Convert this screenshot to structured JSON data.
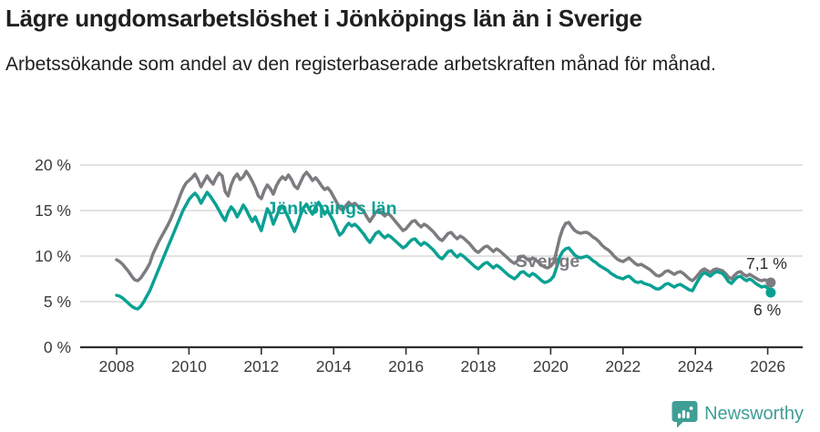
{
  "header": {
    "title": "Lägre ungdomsarbetslöshet i Jönköpings län än i Sverige",
    "subtitle": "Arbetssökande som andel av den registerbaserade arbetskraften månad för månad."
  },
  "chart_data": {
    "type": "line",
    "title": "Lägre ungdomsarbetslöshet i Jönköpings län än i Sverige",
    "subtitle": "Arbetssökande som andel av den registerbaserade arbetskraften månad för månad.",
    "grid": true,
    "legend": "inline-labels-on-lines",
    "unit": "%",
    "sampling": {
      "start": "2008-01",
      "interval": "monthly",
      "end": "2026-02"
    },
    "x_axis": {
      "label": "",
      "tick_labels": [
        "2008",
        "2010",
        "2012",
        "2014",
        "2016",
        "2018",
        "2020",
        "2022",
        "2024",
        "2026"
      ],
      "tick_values": [
        2008,
        2010,
        2012,
        2014,
        2016,
        2018,
        2020,
        2022,
        2024,
        2026
      ],
      "range": [
        2007.0,
        2027.0
      ]
    },
    "y_axis": {
      "label": "",
      "tick_labels": [
        "0 %",
        "5 %",
        "10 %",
        "15 %",
        "20 %"
      ],
      "tick_values": [
        0,
        5,
        10,
        15,
        20
      ],
      "range": [
        0,
        21
      ]
    },
    "series": [
      {
        "name": "Sverige",
        "color": "#7c7c80",
        "end_label": "7,1 %",
        "last_value": 7.1,
        "values": [
          9.6,
          9.4,
          9.1,
          8.7,
          8.3,
          7.8,
          7.4,
          7.3,
          7.6,
          8.1,
          8.6,
          9.2,
          10.2,
          10.9,
          11.6,
          12.2,
          12.8,
          13.4,
          14.1,
          14.9,
          15.7,
          16.6,
          17.4,
          18.0,
          18.3,
          18.6,
          19.0,
          18.4,
          17.6,
          18.2,
          18.8,
          18.3,
          17.9,
          18.6,
          19.1,
          18.8,
          17.1,
          16.6,
          17.8,
          18.6,
          19.0,
          18.4,
          18.7,
          19.3,
          18.8,
          18.2,
          17.5,
          16.6,
          16.3,
          17.2,
          17.8,
          17.4,
          16.8,
          17.7,
          18.3,
          18.7,
          18.4,
          18.9,
          18.4,
          17.7,
          17.4,
          18.1,
          18.8,
          19.2,
          18.8,
          18.3,
          18.6,
          18.2,
          17.7,
          17.3,
          17.5,
          17.1,
          16.5,
          15.9,
          15.3,
          15.0,
          15.5,
          15.9,
          15.6,
          15.8,
          15.5,
          15.2,
          14.9,
          14.3,
          13.8,
          14.3,
          14.8,
          15.1,
          14.7,
          14.4,
          14.7,
          14.4,
          14.0,
          13.6,
          13.2,
          12.8,
          13.0,
          13.4,
          13.8,
          13.9,
          13.5,
          13.2,
          13.5,
          13.3,
          13.0,
          12.7,
          12.3,
          11.9,
          11.7,
          12.1,
          12.5,
          12.6,
          12.2,
          11.9,
          12.2,
          12.0,
          11.7,
          11.4,
          11.0,
          10.6,
          10.4,
          10.7,
          11.0,
          11.1,
          10.8,
          10.5,
          10.8,
          10.6,
          10.3,
          10.0,
          9.7,
          9.4,
          9.2,
          9.5,
          9.9,
          10.0,
          9.7,
          9.5,
          9.8,
          9.6,
          9.3,
          9.0,
          8.8,
          8.7,
          8.9,
          9.3,
          10.6,
          12.0,
          13.0,
          13.6,
          13.7,
          13.2,
          12.8,
          12.6,
          12.5,
          12.6,
          12.6,
          12.4,
          12.1,
          11.9,
          11.6,
          11.2,
          10.9,
          10.7,
          10.4,
          10.0,
          9.7,
          9.5,
          9.4,
          9.6,
          9.8,
          9.5,
          9.2,
          9.0,
          9.1,
          8.9,
          8.7,
          8.5,
          8.2,
          7.9,
          7.8,
          8.0,
          8.3,
          8.4,
          8.2,
          8.0,
          8.2,
          8.3,
          8.1,
          7.8,
          7.5,
          7.3,
          7.6,
          8.0,
          8.4,
          8.6,
          8.4,
          8.2,
          8.5,
          8.6,
          8.5,
          8.4,
          8.1,
          7.7,
          7.5,
          7.9,
          8.2,
          8.3,
          8.0,
          7.8,
          8.0,
          7.8,
          7.6,
          7.4,
          7.3,
          7.4,
          7.3,
          7.1
        ]
      },
      {
        "name": "Jönköpings län",
        "color": "#0aa193",
        "end_label": "6 %",
        "last_value": 6.0,
        "values": [
          5.7,
          5.6,
          5.4,
          5.1,
          4.8,
          4.5,
          4.3,
          4.2,
          4.5,
          5.0,
          5.6,
          6.2,
          7.0,
          7.8,
          8.6,
          9.4,
          10.2,
          11.0,
          11.8,
          12.6,
          13.4,
          14.2,
          15.0,
          15.6,
          16.2,
          16.6,
          16.9,
          16.5,
          15.8,
          16.4,
          17.0,
          16.6,
          16.1,
          15.6,
          15.0,
          14.4,
          13.9,
          14.8,
          15.4,
          15.0,
          14.3,
          14.9,
          15.6,
          15.1,
          14.4,
          13.8,
          14.3,
          13.5,
          12.8,
          14.0,
          15.2,
          14.6,
          13.5,
          14.3,
          15.1,
          15.5,
          14.9,
          14.2,
          13.4,
          12.7,
          13.5,
          14.5,
          15.3,
          15.7,
          15.1,
          14.6,
          15.4,
          15.9,
          15.3,
          14.6,
          15.0,
          14.4,
          13.8,
          13.0,
          12.3,
          12.6,
          13.2,
          13.6,
          13.3,
          13.5,
          13.2,
          12.8,
          12.4,
          11.9,
          11.5,
          12.0,
          12.5,
          12.7,
          12.3,
          12.0,
          12.3,
          12.1,
          11.8,
          11.5,
          11.2,
          10.9,
          11.1,
          11.5,
          11.8,
          11.9,
          11.5,
          11.2,
          11.5,
          11.3,
          11.0,
          10.7,
          10.3,
          9.9,
          9.7,
          10.1,
          10.5,
          10.6,
          10.2,
          9.9,
          10.2,
          10.0,
          9.7,
          9.4,
          9.1,
          8.8,
          8.6,
          8.9,
          9.2,
          9.3,
          9.0,
          8.7,
          9.0,
          8.8,
          8.5,
          8.2,
          7.9,
          7.7,
          7.5,
          7.8,
          8.2,
          8.3,
          8.0,
          7.8,
          8.1,
          7.9,
          7.6,
          7.3,
          7.1,
          7.2,
          7.4,
          7.8,
          8.8,
          9.9,
          10.5,
          10.8,
          10.9,
          10.5,
          10.1,
          9.9,
          9.8,
          9.9,
          10.0,
          9.8,
          9.5,
          9.3,
          9.0,
          8.8,
          8.6,
          8.4,
          8.1,
          7.9,
          7.7,
          7.6,
          7.5,
          7.7,
          7.8,
          7.5,
          7.2,
          7.1,
          7.2,
          7.0,
          6.9,
          6.8,
          6.6,
          6.4,
          6.4,
          6.6,
          6.9,
          7.0,
          6.8,
          6.6,
          6.8,
          6.9,
          6.7,
          6.5,
          6.3,
          6.2,
          6.8,
          7.4,
          7.9,
          8.2,
          8.0,
          7.8,
          8.1,
          8.3,
          8.2,
          8.1,
          7.7,
          7.2,
          7.0,
          7.4,
          7.7,
          7.8,
          7.5,
          7.3,
          7.5,
          7.3,
          7.0,
          6.8,
          6.6,
          6.7,
          6.5,
          6.0
        ]
      }
    ]
  },
  "footer": {
    "brand": "Newsworthy",
    "brand_color": "#3f9e96",
    "icon": "bar-chart-bubble-icon"
  }
}
